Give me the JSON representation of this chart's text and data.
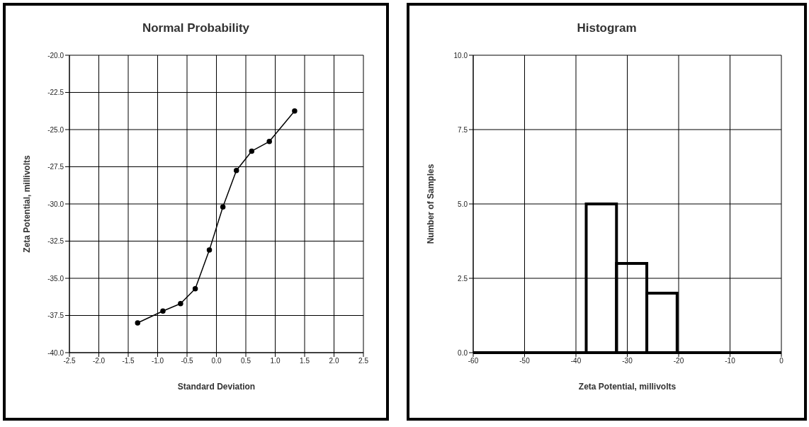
{
  "chart_data": [
    {
      "type": "line",
      "title": "Normal Probability",
      "xlabel": "Standard Deviation",
      "ylabel": "Zeta Potential, millivolts",
      "x": [
        -1.34,
        -0.91,
        -0.61,
        -0.36,
        -0.12,
        0.11,
        0.34,
        0.6,
        0.9,
        1.33
      ],
      "series": [
        {
          "color": "#000000",
          "values": [
            -38.0,
            -37.2,
            -36.7,
            -35.7,
            -33.1,
            -30.2,
            -27.75,
            -26.45,
            -25.8,
            -23.75
          ]
        }
      ],
      "xlim": [
        -2.5,
        2.5
      ],
      "xticks": [
        -2.5,
        {
          "value": -2,
          "label": "-2.0"
        },
        -1.5,
        {
          "value": -1,
          "label": "-1.0"
        },
        -0.5,
        {
          "value": 0,
          "label": "0.0"
        },
        0.5,
        {
          "value": 1,
          "label": "1.0"
        },
        1.5,
        {
          "value": 2,
          "label": "2.0"
        },
        2.5
      ],
      "ylim": [
        -40,
        -20
      ],
      "yticks": [
        {
          "value": -40,
          "label": "-40.0"
        },
        -37.5,
        {
          "value": -35,
          "label": "-35.0"
        },
        -32.5,
        {
          "value": -30,
          "label": "-30.0"
        },
        -27.5,
        {
          "value": -25,
          "label": "-25.0"
        },
        -22.5,
        {
          "value": -20,
          "label": "-20.0"
        }
      ],
      "grid": true,
      "marker": "circle",
      "line_style": "solid"
    },
    {
      "type": "histogram",
      "title": "Histogram",
      "xlabel": "Zeta Potential, millivolts",
      "ylabel": "Number of Samples",
      "bins": [
        -38,
        -32.1,
        -26.2,
        -20.3
      ],
      "values": [
        5,
        3,
        2
      ],
      "color": "#000000",
      "xlim": [
        -60,
        0
      ],
      "xticks": [
        -60,
        -50,
        -40,
        -30,
        -20,
        -10,
        0
      ],
      "ylim": [
        0,
        10
      ],
      "yticks": [
        {
          "value": 0,
          "label": "0.0"
        },
        2.5,
        {
          "value": 5,
          "label": "5.0"
        },
        7.5,
        {
          "value": 10,
          "label": "10.0"
        }
      ],
      "grid": true
    }
  ]
}
